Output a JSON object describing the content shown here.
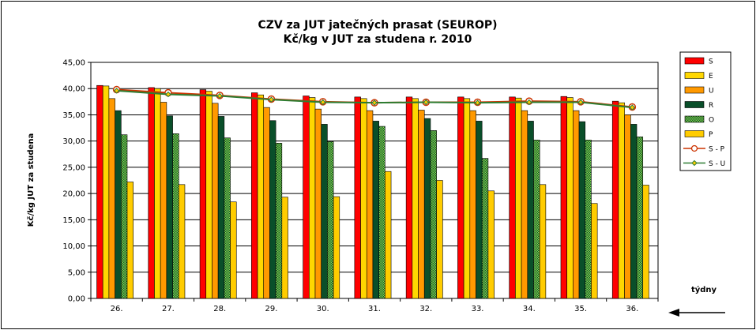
{
  "chart_data": {
    "type": "bar",
    "title_line1": "CZV za JUT jatečných prasat (SEUROP)",
    "title_line2": "Kč/kg v JUT za studena r. 2010",
    "ylabel": "Kč/kg  JUT za studena",
    "xlabel": "týdny",
    "ylim": [
      0,
      45
    ],
    "yticks": [
      "0,00",
      "5,00",
      "10,00",
      "15,00",
      "20,00",
      "25,00",
      "30,00",
      "35,00",
      "40,00",
      "45,00"
    ],
    "categories": [
      "26.",
      "27.",
      "28.",
      "29.",
      "30.",
      "31.",
      "32.",
      "33.",
      "34.",
      "35.",
      "36."
    ],
    "series": [
      {
        "name": "S",
        "kind": "bar",
        "color": "#ff0000",
        "values": [
          40.6,
          40.2,
          39.8,
          39.2,
          38.6,
          38.4,
          38.4,
          38.4,
          38.4,
          38.5,
          37.6
        ]
      },
      {
        "name": "E",
        "kind": "bar",
        "color": "#ffd700",
        "values": [
          40.5,
          40.0,
          39.5,
          38.8,
          38.3,
          38.1,
          38.1,
          38.1,
          38.2,
          38.3,
          37.3
        ]
      },
      {
        "name": "U",
        "kind": "bar",
        "color": "#ff9900",
        "values": [
          38.1,
          37.4,
          37.2,
          36.4,
          36.1,
          35.8,
          35.9,
          35.8,
          35.8,
          35.8,
          35.0
        ]
      },
      {
        "name": "R",
        "kind": "bar",
        "color": "#0a4f2a",
        "values": [
          35.8,
          34.8,
          34.7,
          33.9,
          33.2,
          33.8,
          34.3,
          33.8,
          33.8,
          33.7,
          33.2
        ]
      },
      {
        "name": "O",
        "kind": "bar",
        "color": "#5a8a1e",
        "pattern": true,
        "values": [
          31.2,
          31.4,
          30.6,
          29.6,
          29.9,
          32.8,
          32.0,
          26.7,
          30.2,
          30.2,
          30.8
        ]
      },
      {
        "name": "P",
        "kind": "bar",
        "color": "#ffcc00",
        "values": [
          22.2,
          21.7,
          18.4,
          19.3,
          19.4,
          24.2,
          22.5,
          20.5,
          21.7,
          18.1,
          21.6
        ]
      },
      {
        "name": "S - P",
        "kind": "line",
        "color": "#cc3300",
        "marker": "circle",
        "values": [
          39.8,
          39.2,
          38.7,
          38.0,
          37.5,
          37.3,
          37.4,
          37.4,
          37.6,
          37.5,
          36.5
        ]
      },
      {
        "name": "S - U",
        "kind": "line",
        "color": "#2e7d32",
        "marker": "diamond",
        "values": [
          39.6,
          38.9,
          38.6,
          37.9,
          37.4,
          37.3,
          37.4,
          37.3,
          37.4,
          37.4,
          36.4
        ]
      }
    ],
    "grid": "horizontal",
    "legend_placement": "right"
  }
}
